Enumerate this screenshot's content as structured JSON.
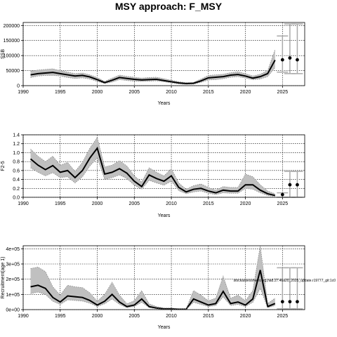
{
  "page": {
    "title": "MSY approach: F_MSY"
  },
  "colors": {
    "band": "#c0c0c0",
    "median": "#000000",
    "errorbar": "#aaaaaa",
    "projection": "#000000"
  },
  "chart_data": [
    {
      "type": "line",
      "xlabel": "Years",
      "ylabel": "SSB",
      "xlim": [
        1990,
        2028
      ],
      "ylim": [
        0,
        210000
      ],
      "x_ticks": [
        1990,
        1995,
        2000,
        2005,
        2010,
        2015,
        2020,
        2025
      ],
      "y_ticks": [
        0,
        50000,
        100000,
        150000,
        200000
      ],
      "y_tick_labels": [
        "0",
        "50000",
        "100000",
        "150000",
        "200000"
      ],
      "x": [
        1991,
        1992,
        1993,
        1994,
        1995,
        1996,
        1997,
        1998,
        1999,
        2000,
        2001,
        2002,
        2003,
        2004,
        2005,
        2006,
        2007,
        2008,
        2009,
        2010,
        2011,
        2012,
        2013,
        2014,
        2015,
        2016,
        2017,
        2018,
        2019,
        2020,
        2021,
        2022,
        2023,
        2024
      ],
      "median": [
        36000,
        40000,
        42000,
        44000,
        40000,
        36000,
        32000,
        34000,
        29000,
        20000,
        10000,
        18000,
        27000,
        24000,
        21000,
        19000,
        20000,
        21000,
        17000,
        13000,
        9000,
        7000,
        8000,
        16000,
        26000,
        28000,
        30000,
        35000,
        37000,
        32000,
        25000,
        30000,
        40000,
        85000
      ],
      "lower": [
        27000,
        32000,
        34000,
        34000,
        32000,
        27000,
        24000,
        26000,
        22000,
        14000,
        7000,
        12000,
        20000,
        17000,
        15000,
        14000,
        15000,
        16000,
        13000,
        9000,
        6000,
        4000,
        5000,
        11000,
        19000,
        20000,
        23000,
        28000,
        30000,
        25000,
        20000,
        22000,
        30000,
        60000
      ],
      "upper": [
        48000,
        52000,
        54000,
        56000,
        50000,
        45000,
        40000,
        42000,
        36000,
        27000,
        14000,
        25000,
        35000,
        31000,
        28000,
        25000,
        27000,
        28000,
        23000,
        18000,
        13000,
        10000,
        11000,
        22000,
        34000,
        36000,
        38000,
        43000,
        46000,
        40000,
        32000,
        38000,
        50000,
        120000
      ],
      "projection": {
        "x": [
          2025,
          2026,
          2027
        ],
        "value": [
          86000,
          92000,
          86000
        ],
        "lower": [
          45000,
          40000,
          40000
        ],
        "upper": [
          165000,
          205000,
          205000
        ]
      }
    },
    {
      "type": "line",
      "xlabel": "Years",
      "ylabel": "F2-5",
      "xlim": [
        1990,
        2028
      ],
      "ylim": [
        0,
        1.4
      ],
      "x_ticks": [
        1990,
        1995,
        2000,
        2005,
        2010,
        2015,
        2020,
        2025
      ],
      "y_ticks": [
        0,
        0.2,
        0.4,
        0.6,
        0.8,
        1.0,
        1.2,
        1.4
      ],
      "y_tick_labels": [
        "0.0",
        "0.2",
        "0.4",
        "0.6",
        "0.8",
        "1.0",
        "1.2",
        "1.4"
      ],
      "x": [
        1991,
        1992,
        1993,
        1994,
        1995,
        1996,
        1997,
        1998,
        1999,
        2000,
        2001,
        2002,
        2003,
        2004,
        2005,
        2006,
        2007,
        2008,
        2009,
        2010,
        2011,
        2012,
        2013,
        2014,
        2015,
        2016,
        2017,
        2018,
        2019,
        2020,
        2021,
        2022,
        2023,
        2024
      ],
      "median": [
        0.86,
        0.72,
        0.62,
        0.71,
        0.56,
        0.6,
        0.44,
        0.6,
        0.88,
        1.1,
        0.52,
        0.56,
        0.64,
        0.54,
        0.36,
        0.24,
        0.5,
        0.42,
        0.36,
        0.48,
        0.22,
        0.12,
        0.18,
        0.2,
        0.14,
        0.1,
        0.16,
        0.14,
        0.14,
        0.28,
        0.28,
        0.16,
        0.08,
        0.04
      ],
      "lower": [
        0.66,
        0.56,
        0.48,
        0.55,
        0.44,
        0.46,
        0.32,
        0.46,
        0.7,
        0.88,
        0.4,
        0.44,
        0.5,
        0.42,
        0.27,
        0.18,
        0.38,
        0.32,
        0.27,
        0.36,
        0.15,
        0.08,
        0.12,
        0.14,
        0.09,
        0.06,
        0.1,
        0.09,
        0.09,
        0.2,
        0.18,
        0.1,
        0.04,
        0.02
      ],
      "upper": [
        1.08,
        0.92,
        0.8,
        0.92,
        0.72,
        0.78,
        0.58,
        0.78,
        1.1,
        1.34,
        0.68,
        0.72,
        0.82,
        0.7,
        0.48,
        0.34,
        0.66,
        0.56,
        0.48,
        0.64,
        0.32,
        0.18,
        0.26,
        0.3,
        0.22,
        0.16,
        0.24,
        0.22,
        0.22,
        0.52,
        0.46,
        0.28,
        0.14,
        0.08
      ],
      "projection": {
        "x": [
          2025,
          2026,
          2027
        ],
        "value": [
          0.06,
          0.28,
          0.28
        ],
        "lower": [
          0.0,
          0.0,
          0.0
        ],
        "upper": [
          0.1,
          0.58,
          0.58
        ]
      }
    },
    {
      "type": "line",
      "xlabel": "Years",
      "ylabel": "Recruitment(age 1)",
      "xlim": [
        1990,
        2028
      ],
      "ylim": [
        0,
        420000.0
      ],
      "x_ticks": [
        1990,
        1995,
        2000,
        2005,
        2010,
        2015,
        2020,
        2025
      ],
      "y_ticks": [
        0,
        100000,
        200000,
        300000,
        400000
      ],
      "y_tick_labels": [
        "0e+00",
        "1e+05",
        "2e+05",
        "3e+05",
        "4e+05"
      ],
      "annotation": "stockassessment.org,had.27.46a20_2025_update.r19777_git:1c0",
      "x": [
        1991,
        1992,
        1993,
        1994,
        1995,
        1996,
        1997,
        1998,
        1999,
        2000,
        2001,
        2002,
        2003,
        2004,
        2005,
        2006,
        2007,
        2008,
        2009,
        2010,
        2011,
        2012,
        2013,
        2014,
        2015,
        2016,
        2017,
        2018,
        2019,
        2020,
        2021,
        2022,
        2023,
        2024
      ],
      "median": [
        150000,
        160000,
        140000,
        80000,
        50000,
        90000,
        85000,
        80000,
        60000,
        30000,
        55000,
        100000,
        50000,
        20000,
        30000,
        70000,
        20000,
        10000,
        5000,
        5000,
        3000,
        3000,
        70000,
        50000,
        30000,
        40000,
        120000,
        40000,
        50000,
        30000,
        70000,
        260000,
        20000,
        40000
      ],
      "lower": [
        105000,
        115000,
        100000,
        55000,
        34000,
        64000,
        60000,
        56000,
        42000,
        20000,
        38000,
        70000,
        34000,
        13000,
        20000,
        48000,
        13000,
        6000,
        3000,
        3000,
        2000,
        2000,
        48000,
        34000,
        20000,
        27000,
        84000,
        27000,
        34000,
        20000,
        48000,
        140000,
        12000,
        27000
      ],
      "upper": [
        270000,
        280000,
        250000,
        150000,
        95000,
        160000,
        150000,
        145000,
        110000,
        55000,
        100000,
        180000,
        95000,
        38000,
        58000,
        125000,
        38000,
        20000,
        10000,
        10000,
        6000,
        6000,
        125000,
        95000,
        58000,
        75000,
        220000,
        75000,
        95000,
        58000,
        125000,
        420000,
        40000,
        75000
      ],
      "projection": {
        "x": [
          2025,
          2026,
          2027
        ],
        "value": [
          52000,
          52000,
          52000
        ],
        "lower": [
          5000,
          5000,
          5000
        ],
        "upper": [
          275000,
          275000,
          275000
        ]
      }
    }
  ]
}
